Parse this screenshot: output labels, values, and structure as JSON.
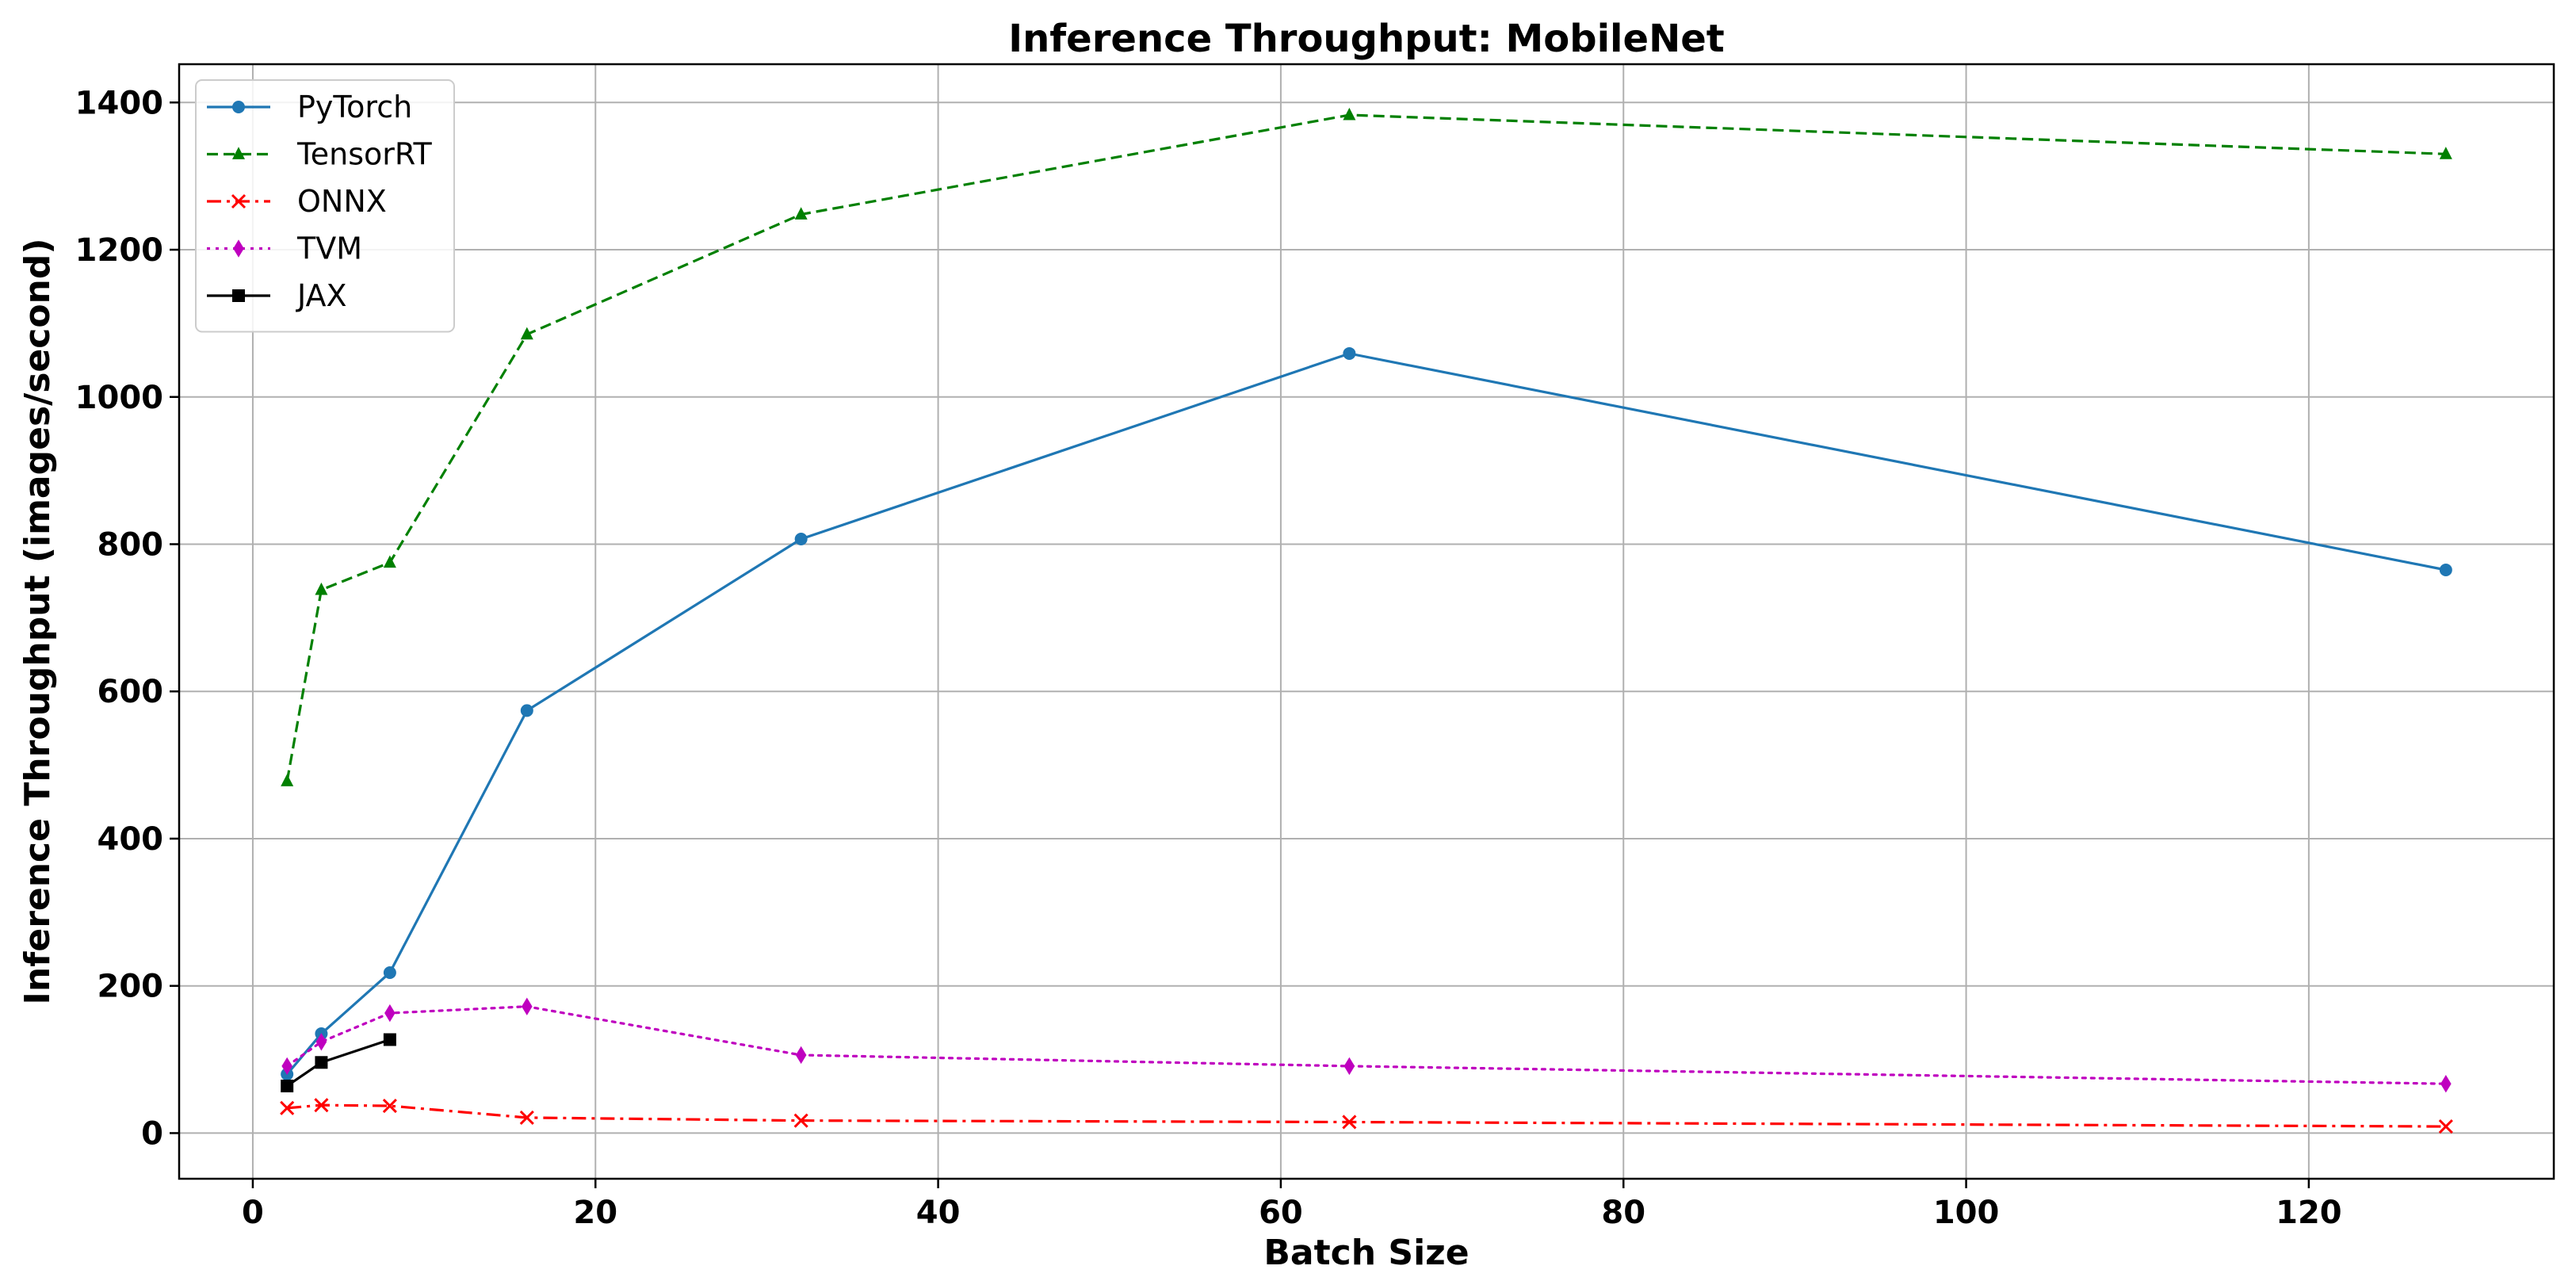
{
  "chart_data": {
    "type": "line",
    "title": "Inference Throughput: MobileNet",
    "xlabel": "Batch Size",
    "ylabel": "Inference Throughput (images/second)",
    "xlim": [
      -4.3,
      134.3
    ],
    "ylim": [
      -62,
      1452
    ],
    "xticks": [
      0,
      20,
      40,
      60,
      80,
      100,
      120
    ],
    "yticks": [
      0,
      200,
      400,
      600,
      800,
      1000,
      1200,
      1400
    ],
    "grid": true,
    "legend_position": "top-left",
    "series": [
      {
        "name": "PyTorch",
        "color": "#1f77b4",
        "linestyle": "solid",
        "marker": "circle",
        "x": [
          2,
          4,
          8,
          16,
          32,
          64,
          128
        ],
        "y": [
          80,
          135,
          218,
          574,
          807,
          1059,
          765
        ]
      },
      {
        "name": "TensorRT",
        "color": "#008000",
        "linestyle": "dashed",
        "marker": "triangle",
        "x": [
          2,
          4,
          8,
          16,
          32,
          64,
          128
        ],
        "y": [
          478,
          738,
          775,
          1085,
          1248,
          1383,
          1330
        ]
      },
      {
        "name": "ONNX",
        "color": "#ff0000",
        "linestyle": "dashdot",
        "marker": "x",
        "x": [
          2,
          4,
          8,
          16,
          32,
          64,
          128
        ],
        "y": [
          34,
          38,
          37,
          21,
          17,
          15,
          9
        ]
      },
      {
        "name": "TVM",
        "color": "#bf00bf",
        "linestyle": "dotted",
        "marker": "diamond",
        "x": [
          2,
          4,
          8,
          16,
          32,
          64,
          128
        ],
        "y": [
          91,
          124,
          163,
          172,
          106,
          91,
          67
        ]
      },
      {
        "name": "JAX",
        "color": "#000000",
        "linestyle": "solid",
        "marker": "square",
        "x": [
          2,
          4,
          8
        ],
        "y": [
          64,
          96,
          127
        ]
      }
    ]
  }
}
